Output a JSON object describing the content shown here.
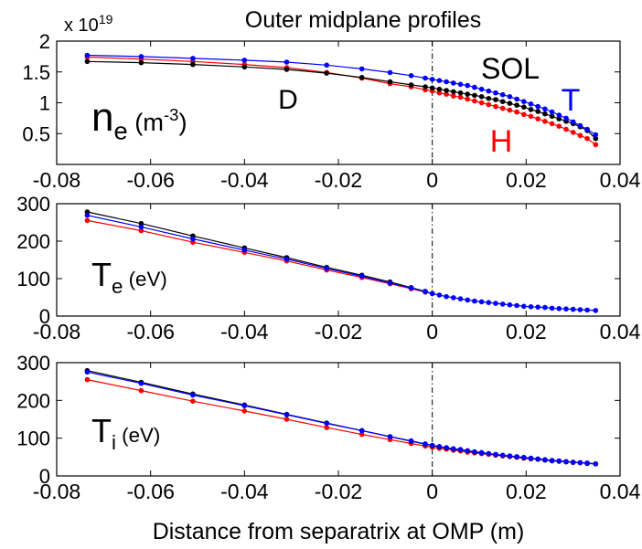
{
  "figure": {
    "title": "Outer midplane profiles",
    "xlabel": "Distance from separatrix at OMP (m)",
    "x_ticks": [
      "-0.08",
      "-0.06",
      "-0.04",
      "-0.02",
      "0",
      "0.02",
      "0.04"
    ],
    "exponent_prefix": "x 10",
    "exponent_power": "19",
    "colors": {
      "H": "#ff0000",
      "D": "#000000",
      "T": "#0000ff",
      "axis": "#000000"
    }
  },
  "chart_data": [
    {
      "type": "line",
      "title": "Outer midplane profiles",
      "ylabel": "",
      "xlim": [
        -0.08,
        0.04
      ],
      "ylim": [
        0,
        2
      ],
      "y_scale_multiplier": "x10^19",
      "y_ticks": [
        "0.5",
        "1",
        "1.5",
        "2"
      ],
      "separatrix_x": 0,
      "label": {
        "main": "n",
        "sub": "e",
        "unit_open": " (m",
        "unit_sup": "-3",
        "unit_close": ")"
      },
      "annotations": [
        {
          "text": "SOL",
          "color": "#000000"
        },
        {
          "text": "D",
          "color": "#000000"
        },
        {
          "text": "T",
          "color": "#0000ff"
        },
        {
          "text": "H",
          "color": "#ff0000"
        }
      ],
      "series": [
        {
          "name": "H",
          "color": "#ff0000",
          "x": [
            -0.0735,
            -0.062,
            -0.051,
            -0.04,
            -0.031,
            -0.0225,
            -0.015,
            -0.009,
            -0.0045,
            -0.0015,
            0.0,
            0.0015,
            0.003,
            0.0045,
            0.006,
            0.0075,
            0.009,
            0.0105,
            0.012,
            0.0135,
            0.015,
            0.0165,
            0.018,
            0.0195,
            0.021,
            0.0225,
            0.024,
            0.0255,
            0.027,
            0.0285,
            0.03,
            0.0315,
            0.033,
            0.0348
          ],
          "y": [
            1.74,
            1.71,
            1.67,
            1.62,
            1.57,
            1.49,
            1.4,
            1.31,
            1.26,
            1.21,
            1.19,
            1.16,
            1.14,
            1.11,
            1.09,
            1.06,
            1.03,
            1.0,
            0.97,
            0.94,
            0.91,
            0.88,
            0.85,
            0.81,
            0.78,
            0.74,
            0.7,
            0.66,
            0.62,
            0.57,
            0.52,
            0.47,
            0.42,
            0.32
          ]
        },
        {
          "name": "D",
          "color": "#000000",
          "x": [
            -0.0735,
            -0.062,
            -0.051,
            -0.04,
            -0.031,
            -0.0225,
            -0.015,
            -0.009,
            -0.0045,
            -0.0015,
            0.0,
            0.0015,
            0.003,
            0.0045,
            0.006,
            0.0075,
            0.009,
            0.0105,
            0.012,
            0.0135,
            0.015,
            0.0165,
            0.018,
            0.0195,
            0.021,
            0.0225,
            0.024,
            0.0255,
            0.027,
            0.0285,
            0.03,
            0.0315,
            0.033,
            0.0348
          ],
          "y": [
            1.67,
            1.65,
            1.62,
            1.58,
            1.54,
            1.48,
            1.41,
            1.34,
            1.29,
            1.26,
            1.24,
            1.22,
            1.2,
            1.18,
            1.16,
            1.14,
            1.12,
            1.1,
            1.07,
            1.05,
            1.02,
            0.99,
            0.96,
            0.93,
            0.89,
            0.86,
            0.82,
            0.78,
            0.74,
            0.7,
            0.66,
            0.61,
            0.55,
            0.42
          ]
        },
        {
          "name": "T",
          "color": "#0000ff",
          "x": [
            -0.0735,
            -0.062,
            -0.051,
            -0.04,
            -0.031,
            -0.0225,
            -0.015,
            -0.009,
            -0.0045,
            -0.0015,
            0.0,
            0.0015,
            0.003,
            0.0045,
            0.006,
            0.0075,
            0.009,
            0.0105,
            0.012,
            0.0135,
            0.015,
            0.0165,
            0.018,
            0.0195,
            0.021,
            0.0225,
            0.024,
            0.0255,
            0.027,
            0.0285,
            0.03,
            0.0315,
            0.033,
            0.0348
          ],
          "y": [
            1.77,
            1.75,
            1.72,
            1.69,
            1.66,
            1.61,
            1.55,
            1.49,
            1.44,
            1.4,
            1.38,
            1.36,
            1.34,
            1.32,
            1.3,
            1.28,
            1.25,
            1.22,
            1.19,
            1.16,
            1.13,
            1.1,
            1.06,
            1.02,
            0.98,
            0.94,
            0.9,
            0.85,
            0.8,
            0.75,
            0.69,
            0.63,
            0.57,
            0.48
          ]
        }
      ]
    },
    {
      "type": "line",
      "xlim": [
        -0.08,
        0.04
      ],
      "ylim": [
        0,
        300
      ],
      "y_ticks": [
        "0",
        "100",
        "200",
        "300"
      ],
      "separatrix_x": 0,
      "label": {
        "main": "T",
        "sub": "e",
        "unit_open": " (eV)",
        "unit_sup": "",
        "unit_close": ""
      },
      "series": [
        {
          "name": "H",
          "color": "#ff0000",
          "x": [
            -0.0735,
            -0.062,
            -0.051,
            -0.04,
            -0.031,
            -0.0225,
            -0.015,
            -0.009,
            -0.0045,
            -0.0015,
            0.0
          ],
          "y": [
            255,
            228,
            197,
            170,
            147,
            123,
            103,
            86,
            73,
            64,
            60
          ]
        },
        {
          "name": "D",
          "color": "#000000",
          "x": [
            -0.0735,
            -0.062,
            -0.051,
            -0.04,
            -0.031,
            -0.0225,
            -0.015,
            -0.009,
            -0.0045,
            -0.0015,
            0.0
          ],
          "y": [
            278,
            247,
            214,
            182,
            156,
            130,
            109,
            91,
            76,
            66,
            60
          ]
        },
        {
          "name": "T",
          "color": "#0000ff",
          "x": [
            -0.0735,
            -0.062,
            -0.051,
            -0.04,
            -0.031,
            -0.0225,
            -0.015,
            -0.009,
            -0.0045,
            -0.0015,
            0.0,
            0.0015,
            0.003,
            0.0045,
            0.006,
            0.0075,
            0.009,
            0.0105,
            0.012,
            0.0135,
            0.015,
            0.0165,
            0.018,
            0.0195,
            0.021,
            0.0225,
            0.024,
            0.0255,
            0.027,
            0.0285,
            0.03,
            0.0315,
            0.033,
            0.0348
          ],
          "y": [
            269,
            238,
            206,
            176,
            152,
            127,
            106,
            88,
            75,
            65,
            60,
            56,
            52,
            49,
            46,
            43,
            40,
            38,
            36,
            34,
            32,
            30,
            28,
            26,
            25,
            24,
            23,
            21,
            20,
            19,
            18,
            17,
            16,
            15
          ]
        }
      ]
    },
    {
      "type": "line",
      "xlim": [
        -0.08,
        0.04
      ],
      "ylim": [
        0,
        300
      ],
      "y_ticks": [
        "0",
        "100",
        "200",
        "300"
      ],
      "separatrix_x": 0,
      "label": {
        "main": "T",
        "sub": "i",
        "unit_open": " (eV)",
        "unit_sup": "",
        "unit_close": ""
      },
      "series": [
        {
          "name": "H",
          "color": "#ff0000",
          "x": [
            -0.0735,
            -0.062,
            -0.051,
            -0.04,
            -0.031,
            -0.0225,
            -0.015,
            -0.009,
            -0.0045,
            -0.0015,
            0.0,
            0.0015,
            0.003,
            0.0045,
            0.006,
            0.0075,
            0.009,
            0.0105,
            0.012,
            0.0135,
            0.015,
            0.0165,
            0.018,
            0.0195,
            0.021,
            0.0225,
            0.024,
            0.0255,
            0.027,
            0.0285,
            0.03,
            0.0315,
            0.033,
            0.0348
          ],
          "y": [
            255,
            226,
            198,
            172,
            150,
            128,
            110,
            96,
            86,
            79,
            76,
            73,
            71,
            68,
            66,
            63,
            61,
            59,
            57,
            55,
            53,
            51,
            49,
            47,
            45,
            44,
            42,
            41,
            39,
            38,
            36,
            35,
            34,
            32
          ]
        },
        {
          "name": "D",
          "color": "#000000",
          "x": [
            -0.0735,
            -0.062,
            -0.051,
            -0.04,
            -0.031,
            -0.0225,
            -0.015,
            -0.009,
            -0.0045,
            -0.0015,
            0.0,
            0.0015,
            0.003,
            0.0045,
            0.006,
            0.0075,
            0.009,
            0.0105,
            0.012,
            0.0135,
            0.015,
            0.0165,
            0.018,
            0.0195,
            0.021,
            0.0225,
            0.024,
            0.0255,
            0.027,
            0.0285,
            0.03,
            0.0315,
            0.033,
            0.0348
          ],
          "y": [
            279,
            248,
            217,
            188,
            163,
            140,
            120,
            104,
            92,
            84,
            80,
            77,
            74,
            71,
            69,
            66,
            63,
            61,
            59,
            56,
            54,
            52,
            50,
            48,
            46,
            44,
            42,
            40,
            39,
            37,
            36,
            35,
            33,
            32
          ]
        },
        {
          "name": "T",
          "color": "#0000ff",
          "x": [
            -0.0735,
            -0.062,
            -0.051,
            -0.04,
            -0.031,
            -0.0225,
            -0.015,
            -0.009,
            -0.0045,
            -0.0015,
            0.0,
            0.0015,
            0.003,
            0.0045,
            0.006,
            0.0075,
            0.009,
            0.0105,
            0.012,
            0.0135,
            0.015,
            0.0165,
            0.018,
            0.0195,
            0.021,
            0.0225,
            0.024,
            0.0255,
            0.027,
            0.0285,
            0.03,
            0.0315,
            0.033,
            0.0348
          ],
          "y": [
            275,
            245,
            214,
            186,
            162,
            139,
            120,
            104,
            93,
            85,
            81,
            78,
            75,
            72,
            70,
            67,
            64,
            62,
            59,
            57,
            55,
            53,
            51,
            49,
            47,
            45,
            43,
            41,
            40,
            38,
            36,
            35,
            34,
            32
          ]
        }
      ]
    }
  ]
}
